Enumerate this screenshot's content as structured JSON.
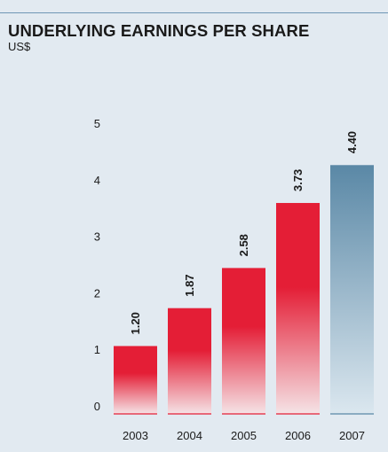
{
  "header": {
    "title": "UNDERLYING EARNINGS PER SHARE",
    "unit": "US$"
  },
  "colors": {
    "background": "#e2eaf1",
    "rule": "#6f97b5",
    "historic_bar_top": "#e41e36",
    "historic_bar_bottom": "#f5e3e6",
    "latest_bar_top": "#5a88a6",
    "latest_bar_bottom": "#dbe7ef"
  },
  "chart_data": {
    "type": "bar",
    "title": "UNDERLYING EARNINGS PER SHARE",
    "ylabel": "US$",
    "xlabel": "",
    "categories": [
      "2003",
      "2004",
      "2005",
      "2006",
      "2007"
    ],
    "values": [
      1.2,
      1.87,
      2.58,
      3.73,
      4.4
    ],
    "value_labels": [
      "1.20",
      "1.87",
      "2.58",
      "3.73",
      "4.40"
    ],
    "highlight_last_bar": true,
    "ylim": [
      0,
      5
    ],
    "yticks": [
      0,
      1,
      2,
      3,
      4,
      5
    ],
    "ytick_labels": [
      "0",
      "1",
      "2",
      "3",
      "4",
      "5"
    ],
    "grid": false,
    "legend": "none"
  }
}
